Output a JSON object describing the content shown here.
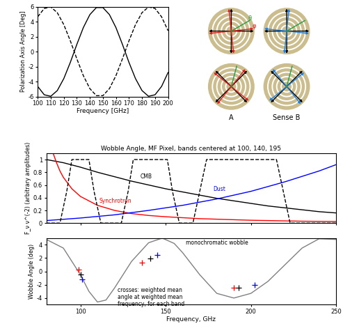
{
  "chart_data": [
    {
      "type": "line",
      "xlabel": "Frequency [GHz]",
      "ylabel": "Polarization Axis Angle [Deg]",
      "x": [
        100,
        105,
        110,
        115,
        120,
        125,
        130,
        135,
        140,
        145,
        150,
        155,
        160,
        165,
        170,
        175,
        180,
        185,
        190,
        195,
        200
      ],
      "xlim": [
        100,
        200
      ],
      "xticks": [
        100,
        110,
        120,
        130,
        140,
        150,
        160,
        170,
        180,
        190,
        200
      ],
      "ylim": [
        -6,
        6
      ],
      "yticks": [
        -6,
        -4,
        -2,
        0,
        2,
        4,
        6
      ],
      "series": [
        {
          "color": "#000000",
          "line_style": "solid",
          "values": [
            -4.65,
            -5.76,
            -5.96,
            -5.2,
            -3.6,
            -1.44,
            0.96,
            3.21,
            4.94,
            5.88,
            5.88,
            4.94,
            3.21,
            0.96,
            -1.44,
            -3.6,
            -5.2,
            -5.96,
            -5.76,
            -4.65,
            -2.79
          ]
        },
        {
          "color": "#000000",
          "line_style": "dashed",
          "values": [
            4.65,
            5.76,
            5.96,
            5.2,
            3.6,
            1.44,
            -0.96,
            -3.21,
            -4.94,
            -5.88,
            -5.88,
            -4.94,
            -3.21,
            -0.96,
            1.44,
            3.6,
            5.2,
            5.96,
            5.76,
            4.65,
            2.79
          ]
        }
      ]
    },
    {
      "type": "line",
      "title": "Wobble Angle, MF Pixel, bands centered at 100, 140, 195",
      "ylabel": "F_ν ν^(-2) (arbitrary amplitudes)",
      "xlim": [
        80,
        250
      ],
      "xticks": [
        100,
        150,
        200,
        250
      ],
      "ylim": [
        0,
        1.1
      ],
      "yticks": [
        0,
        0.2,
        0.4,
        0.6,
        0.8,
        1
      ],
      "tick_labels": "y",
      "series": [
        {
          "color": "#000000",
          "line_style": "solid",
          "x": [
            80,
            90,
            100,
            110,
            120,
            130,
            140,
            150,
            160,
            170,
            180,
            190,
            200,
            210,
            220,
            230,
            240,
            250
          ],
          "values": [
            1.0,
            0.95,
            0.88,
            0.8,
            0.73,
            0.66,
            0.6,
            0.54,
            0.49,
            0.44,
            0.39,
            0.35,
            0.31,
            0.27,
            0.24,
            0.21,
            0.18,
            0.16
          ]
        },
        {
          "color": "#ff0000",
          "line_style": "solid",
          "x": [
            84,
            86,
            88,
            90,
            95,
            100,
            110,
            120,
            130,
            140,
            150,
            170,
            200,
            230,
            250
          ],
          "values": [
            1.1,
            0.95,
            0.82,
            0.72,
            0.54,
            0.42,
            0.28,
            0.2,
            0.15,
            0.12,
            0.1,
            0.07,
            0.045,
            0.03,
            0.025
          ]
        },
        {
          "color": "#0000ff",
          "line_style": "solid",
          "x": [
            80,
            100,
            120,
            140,
            160,
            180,
            200,
            220,
            240,
            250
          ],
          "values": [
            0.04,
            0.08,
            0.13,
            0.2,
            0.28,
            0.38,
            0.5,
            0.65,
            0.82,
            0.92
          ]
        },
        {
          "color": "#000000",
          "line_style": "dashed",
          "x": [
            80,
            88,
            92,
            95,
            105,
            108,
            112,
            124,
            128,
            131,
            151,
            154,
            158,
            166,
            170,
            174,
            215,
            219,
            223,
            250
          ],
          "values": [
            0,
            0,
            0.5,
            1,
            1,
            0.5,
            0,
            0,
            0.5,
            1,
            1,
            0.5,
            0,
            0,
            0.5,
            1,
            1,
            0.5,
            0,
            0
          ]
        }
      ],
      "annotations": [
        {
          "text": "CMB",
          "x": 135,
          "y": 0.68,
          "color": "#000000"
        },
        {
          "text": "Synchrotron",
          "x": 111,
          "y": 0.3,
          "color": "#ff0000"
        },
        {
          "text": "Dust",
          "x": 178,
          "y": 0.48,
          "color": "#0000ff"
        }
      ]
    },
    {
      "type": "line",
      "xlabel": "Frequency, GHz",
      "ylabel": "Wobble Angle (deg)",
      "xlim": [
        80,
        250
      ],
      "xticks": [
        100,
        150,
        200,
        250
      ],
      "ylim": [
        -5,
        5
      ],
      "yticks": [
        -4,
        -2,
        0,
        2,
        4
      ],
      "series": [
        {
          "color": "#808080",
          "line_style": "solid",
          "x": [
            80,
            90,
            100,
            105,
            110,
            115,
            120,
            130,
            140,
            148,
            155,
            160,
            170,
            180,
            190,
            200,
            210,
            220,
            230,
            240,
            250
          ],
          "values": [
            4.8,
            3.5,
            -0.5,
            -3.0,
            -4.6,
            -4.3,
            -2.5,
            1.5,
            4.3,
            5.0,
            4.2,
            2.8,
            -0.5,
            -3.3,
            -4.0,
            -3.3,
            -1.5,
            1.0,
            3.5,
            4.9,
            4.8
          ]
        },
        {
          "type": "scatter",
          "marker": "plus",
          "color": "#ff0000",
          "x": [
            99,
            136,
            190
          ],
          "values": [
            0.3,
            1.3,
            -2.5
          ]
        },
        {
          "type": "scatter",
          "marker": "plus",
          "color": "#000000",
          "x": [
            100,
            141,
            193
          ],
          "values": [
            -0.5,
            1.9,
            -2.5
          ]
        },
        {
          "type": "scatter",
          "marker": "plus",
          "color": "#0000ff",
          "x": [
            101,
            145,
            202
          ],
          "values": [
            -1.2,
            2.5,
            -2.0
          ]
        }
      ],
      "annotations": [
        {
          "text": "monochromatic wobble",
          "x": 162,
          "y": 3.8,
          "color": "#000000"
        },
        {
          "text": "crosses: weighted mean\nangle at weighted mean\nfrequency, for each band",
          "x": 122,
          "y": -2.3,
          "color": "#000000"
        }
      ]
    }
  ],
  "diagram": {
    "labels": [
      "A",
      "Sense B"
    ],
    "angle_symbols": [
      "θ",
      "φ"
    ]
  }
}
